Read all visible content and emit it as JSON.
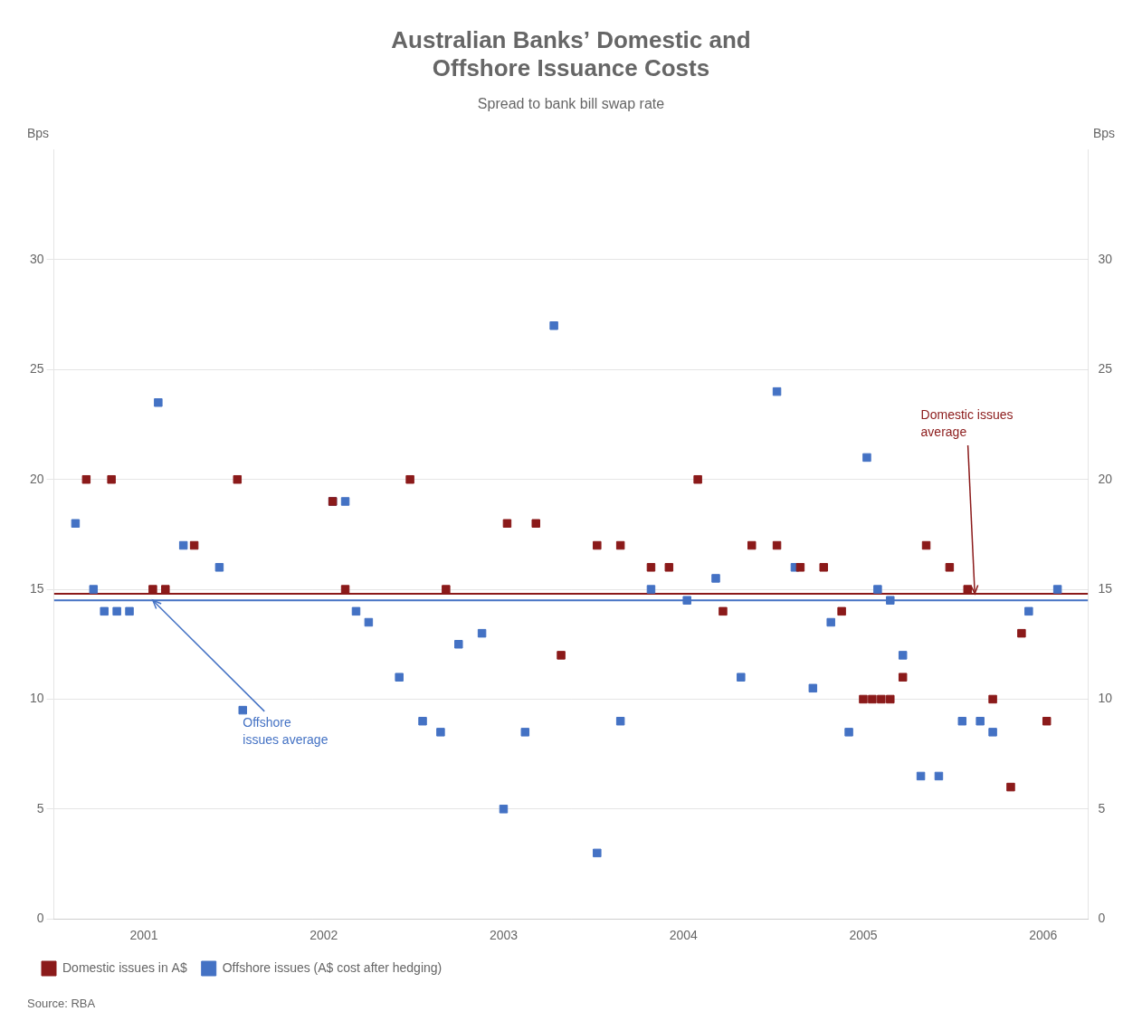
{
  "chart_data": {
    "type": "scatter",
    "title": "Australian Banks’ Domestic and\nOffshore Issuance Costs",
    "subtitle": "Spread to bank bill swap rate",
    "ylabel": "Bps",
    "y2label": "Bps",
    "source": "Source: RBA",
    "xlim": [
      2000.5,
      2006.25
    ],
    "xticks": [
      2001,
      2002,
      2003,
      2004,
      2005,
      2006
    ],
    "ylim": [
      0,
      35
    ],
    "yticks": [
      0,
      5,
      10,
      15,
      20,
      25,
      30
    ],
    "y2lim": [
      0,
      35
    ],
    "y2ticks": [
      0,
      5,
      10,
      15,
      20,
      25,
      30
    ],
    "grid": "y",
    "legend": "bottom",
    "series": [
      {
        "name": "Domestic issues in A$",
        "color": "#8B1A1A",
        "marker": "square",
        "x": [
          2000.68,
          2000.82,
          2001.05,
          2001.12,
          2001.28,
          2001.52,
          2002.05,
          2002.12,
          2002.48,
          2002.68,
          2003.02,
          2003.18,
          2003.32,
          2003.52,
          2003.65,
          2003.82,
          2003.92,
          2004.08,
          2004.22,
          2004.38,
          2004.52,
          2004.65,
          2004.78,
          2004.88,
          2005.0,
          2005.05,
          2005.1,
          2005.15,
          2005.22,
          2005.35,
          2005.48,
          2005.58,
          2005.72,
          2005.82,
          2005.88,
          2006.02
        ],
        "values": [
          20.0,
          20.0,
          15.0,
          15.0,
          17.0,
          20.0,
          19.0,
          15.0,
          20.0,
          15.0,
          18.0,
          18.0,
          12.0,
          17.0,
          17.0,
          16.0,
          16.0,
          20.0,
          14.0,
          17.0,
          17.0,
          16.0,
          16.0,
          14.0,
          10.0,
          10.0,
          10.0,
          10.0,
          11.0,
          17.0,
          16.0,
          15.0,
          10.0,
          6.0,
          13.0,
          9.0
        ]
      },
      {
        "name": "Offshore issues (A$ cost after hedging)",
        "color": "#4472C4",
        "marker": "square",
        "x": [
          2000.62,
          2000.72,
          2000.78,
          2000.85,
          2000.92,
          2001.08,
          2001.22,
          2001.42,
          2001.55,
          2002.05,
          2002.12,
          2002.18,
          2002.25,
          2002.42,
          2002.55,
          2002.65,
          2002.75,
          2002.88,
          2003.0,
          2003.12,
          2003.28,
          2003.52,
          2003.65,
          2003.82,
          2004.02,
          2004.18,
          2004.32,
          2004.52,
          2004.62,
          2004.72,
          2004.82,
          2004.92,
          2005.02,
          2005.08,
          2005.15,
          2005.22,
          2005.32,
          2005.42,
          2005.55,
          2005.65,
          2005.72,
          2005.92,
          2006.08
        ],
        "values": [
          18.0,
          15.0,
          14.0,
          14.0,
          14.0,
          23.5,
          17.0,
          16.0,
          9.5,
          19.0,
          19.0,
          14.0,
          13.5,
          11.0,
          9.0,
          8.5,
          12.5,
          13.0,
          5.0,
          8.5,
          27.0,
          3.0,
          9.0,
          15.0,
          14.5,
          15.5,
          11.0,
          24.0,
          16.0,
          10.5,
          13.5,
          8.5,
          21.0,
          15.0,
          14.5,
          12.0,
          6.5,
          6.5,
          9.0,
          9.0,
          8.5,
          14.0,
          15.0
        ]
      }
    ],
    "hlines": [
      {
        "value": 14.5,
        "color": "#4472C4"
      },
      {
        "value": 14.8,
        "color": "#8B1A1A"
      }
    ],
    "annotations": [
      {
        "text": "Offshore\nissues average",
        "xy": [
          2001.05,
          14.5
        ],
        "xytext": [
          2001.55,
          8.5
        ],
        "color": "#4472C4"
      },
      {
        "text": "Domestic issues\naverage",
        "xy": [
          2005.62,
          14.8
        ],
        "xytext": [
          2005.32,
          22.5
        ],
        "color": "#8B1A1A"
      }
    ]
  }
}
